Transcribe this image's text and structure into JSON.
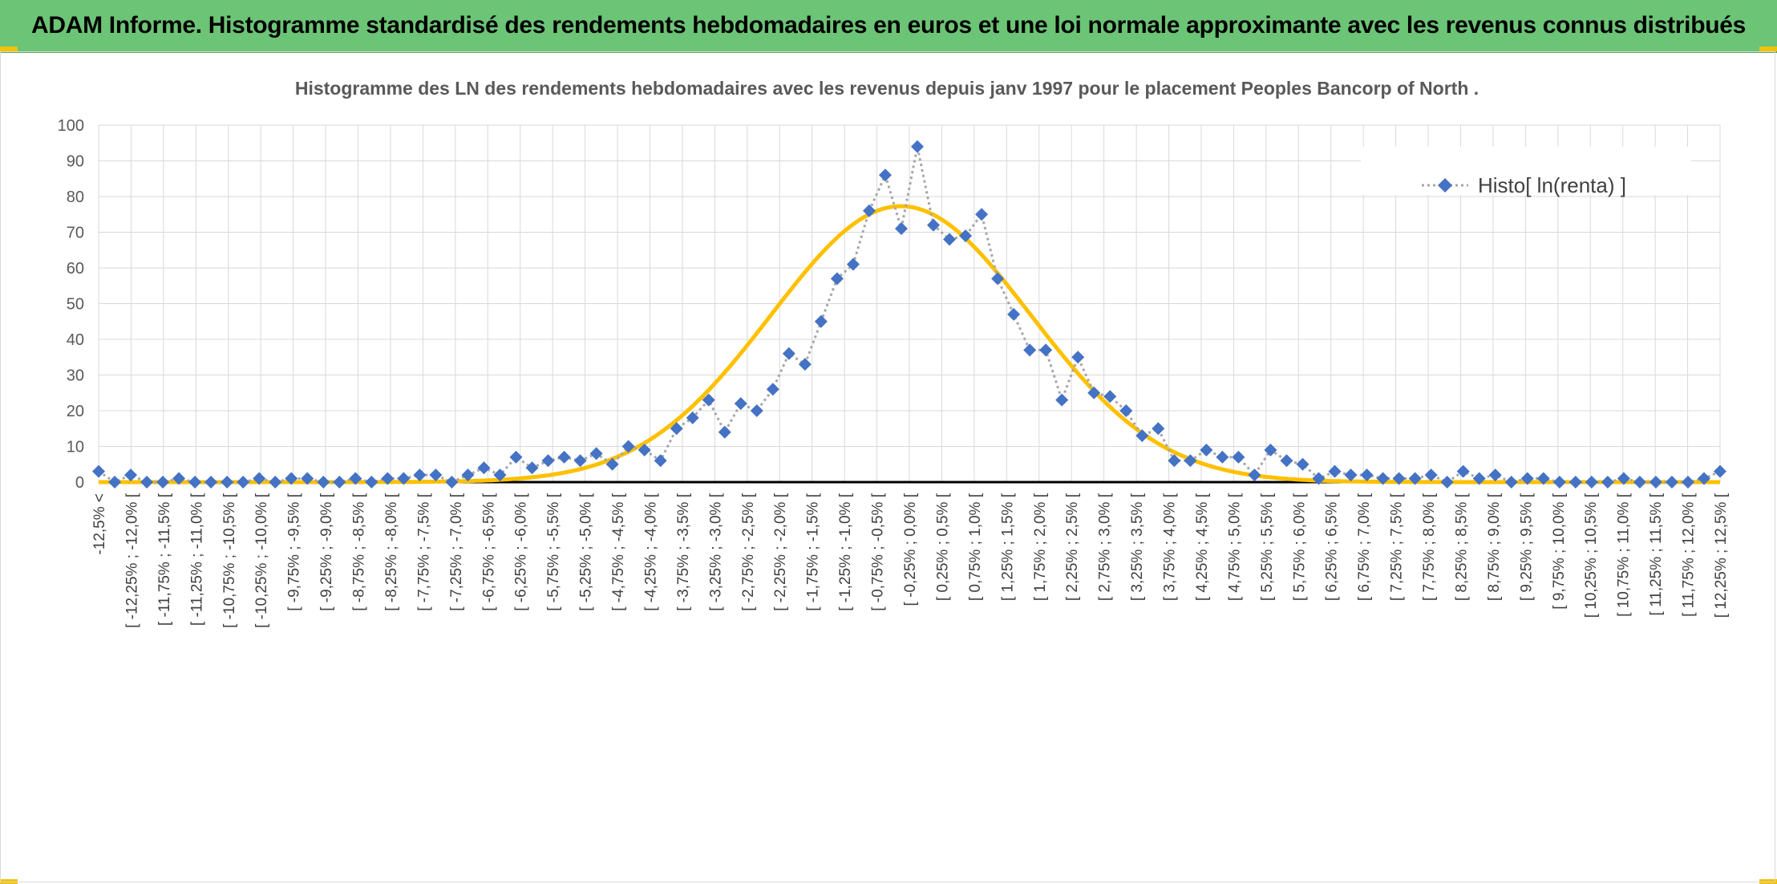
{
  "header": {
    "title": "ADAM Informe. Histogramme standardisé des rendements hebdomadaires en euros et une loi normale approximante avec les revenus connus distribués"
  },
  "colors": {
    "banner": "#6cc476",
    "marker": "#4472c4",
    "normal_curve": "#ffc000",
    "gridline": "#d9d9d9",
    "dotted_line": "#a6a6a6"
  },
  "chart_data": {
    "type": "scatter",
    "title": "Histogramme des LN des rendements hebdomadaires avec les revenus depuis janv 1997 pour le placement Peoples Bancorp of North .",
    "xlabel": "",
    "ylabel": "",
    "ylim": [
      0,
      100
    ],
    "yticks": [
      0,
      10,
      20,
      30,
      40,
      50,
      60,
      70,
      80,
      90,
      100
    ],
    "grid": true,
    "legend_position": "top-right",
    "categories": [
      "-12,5% <",
      "[ -12,25% ; -12,0% [",
      "[ -11,75% ; -11,5% [",
      "[ -11,25% ; -11,0% [",
      "[ -10,75% ; -10,5% [",
      "[ -10,25% ; -10,0% [",
      "[ -9,75% ; -9,5% [",
      "[ -9,25% ; -9,0% [",
      "[ -8,75% ; -8,5% [",
      "[ -8,25% ; -8,0% [",
      "[ -7,75% ; -7,5% [",
      "[ -7,25% ; -7,0% [",
      "[ -6,75% ; -6,5% [",
      "[ -6,25% ; -6,0% [",
      "[ -5,75% ; -5,5% [",
      "[ -5,25% ; -5,0% [",
      "[ -4,75% ; -4,5% [",
      "[ -4,25% ; -4,0% [",
      "[ -3,75% ; -3,5% [",
      "[ -3,25% ; -3,0% [",
      "[ -2,75% ; -2,5% [",
      "[ -2,25% ; -2,0% [",
      "[ -1,75% ; -1,5% [",
      "[ -1,25% ; -1,0% [",
      "[ -0,75% ; -0,5% [",
      "[ -0,25% ; 0,0% [",
      "[ 0,25% ; 0,5% [",
      "[ 0,75% ; 1,0% [",
      "[ 1,25% ; 1,5% [",
      "[ 1,75% ; 2,0% [",
      "[ 2,25% ; 2,5% [",
      "[ 2,75% ; 3,0% [",
      "[ 3,25% ; 3,5% [",
      "[ 3,75% ; 4,0% [",
      "[ 4,25% ; 4,5% [",
      "[ 4,75% ; 5,0% [",
      "[ 5,25% ; 5,5% [",
      "[ 5,75% ; 6,0% [",
      "[ 6,25% ; 6,5% [",
      "[ 6,75% ; 7,0% [",
      "[ 7,25% ; 7,5% [",
      "[ 7,75% ; 8,0% [",
      "[ 8,25% ; 8,5% [",
      "[ 8,75% ; 9,0% [",
      "[ 9,25% ; 9,5% [",
      "[ 9,75% ; 10,0% [",
      "[ 10,25% ; 10,5% [",
      "[ 10,75% ; 11,0% [",
      "[ 11,25% ; 11,5% [",
      "[ 11,75% ; 12,0% [",
      "[ 12,25% ; 12,5% ["
    ],
    "series": [
      {
        "name": "Histo[ ln(renta) ]",
        "style": "dotted-line-diamond-markers",
        "values": [
          3,
          0,
          2,
          0,
          0,
          1,
          0,
          0,
          0,
          0,
          1,
          0,
          1,
          1,
          0,
          0,
          1,
          0,
          1,
          1,
          2,
          2,
          0,
          2,
          4,
          2,
          7,
          4,
          6,
          7,
          6,
          8,
          5,
          10,
          9,
          6,
          15,
          18,
          23,
          14,
          22,
          20,
          26,
          36,
          33,
          45,
          57,
          61,
          76,
          86,
          71,
          94,
          72,
          68,
          69,
          75,
          57,
          47,
          37,
          37,
          23,
          35,
          25,
          24,
          20,
          13,
          15,
          6,
          6,
          9,
          7,
          7,
          2,
          9,
          6,
          5,
          1,
          3,
          2,
          2,
          1,
          1,
          1,
          2,
          0,
          3,
          1,
          2,
          0,
          1,
          1,
          0,
          0,
          0,
          0,
          1,
          0,
          0,
          0,
          0,
          1,
          3
        ]
      },
      {
        "name": "",
        "style": "smooth-line",
        "distribution": "normal",
        "mean": -0.13,
        "std_dev": 2.0,
        "peak": 77.3
      }
    ]
  }
}
